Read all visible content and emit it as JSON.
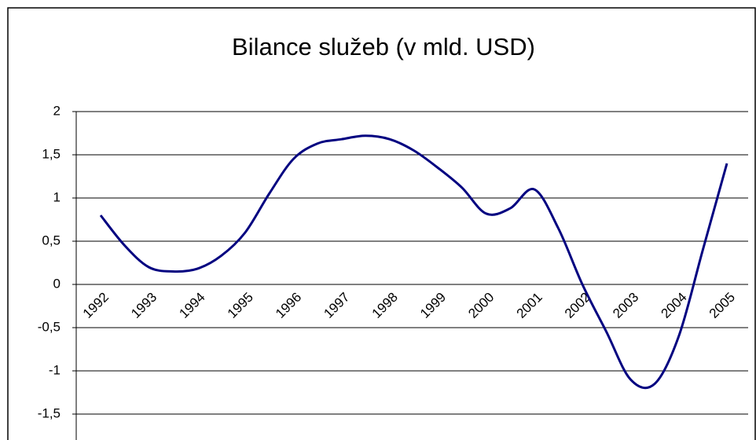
{
  "chart_data": {
    "type": "line",
    "title": "Bilance služeb (v mld. USD)",
    "categories": [
      "1992",
      null,
      "1993",
      null,
      "1994",
      null,
      "1995",
      null,
      "1996",
      null,
      "1997",
      null,
      "1998",
      null,
      "1999",
      null,
      "2000",
      null,
      "2001",
      null,
      "2002",
      null,
      "2003",
      null,
      "2004",
      null,
      "2005"
    ],
    "series": [
      {
        "name": "Bilance služeb",
        "color": "#000080",
        "values": [
          0.8,
          0.45,
          0.2,
          0.15,
          0.18,
          0.33,
          0.6,
          1.05,
          1.45,
          1.63,
          1.68,
          1.72,
          1.68,
          1.55,
          1.35,
          1.12,
          0.82,
          0.88,
          1.1,
          0.65,
          0.0,
          -0.55,
          -1.1,
          -1.15,
          -0.6,
          0.4,
          1.4
        ]
      }
    ],
    "ylim": [
      -1.5,
      2
    ],
    "yticks": [
      {
        "value": -1.5,
        "label": "-1,5"
      },
      -1,
      {
        "value": -0.5,
        "label": "-0,5"
      },
      0,
      {
        "value": 0.5,
        "label": "0,5"
      },
      1,
      {
        "value": 1.5,
        "label": "1,5"
      },
      2
    ],
    "grid": true
  }
}
